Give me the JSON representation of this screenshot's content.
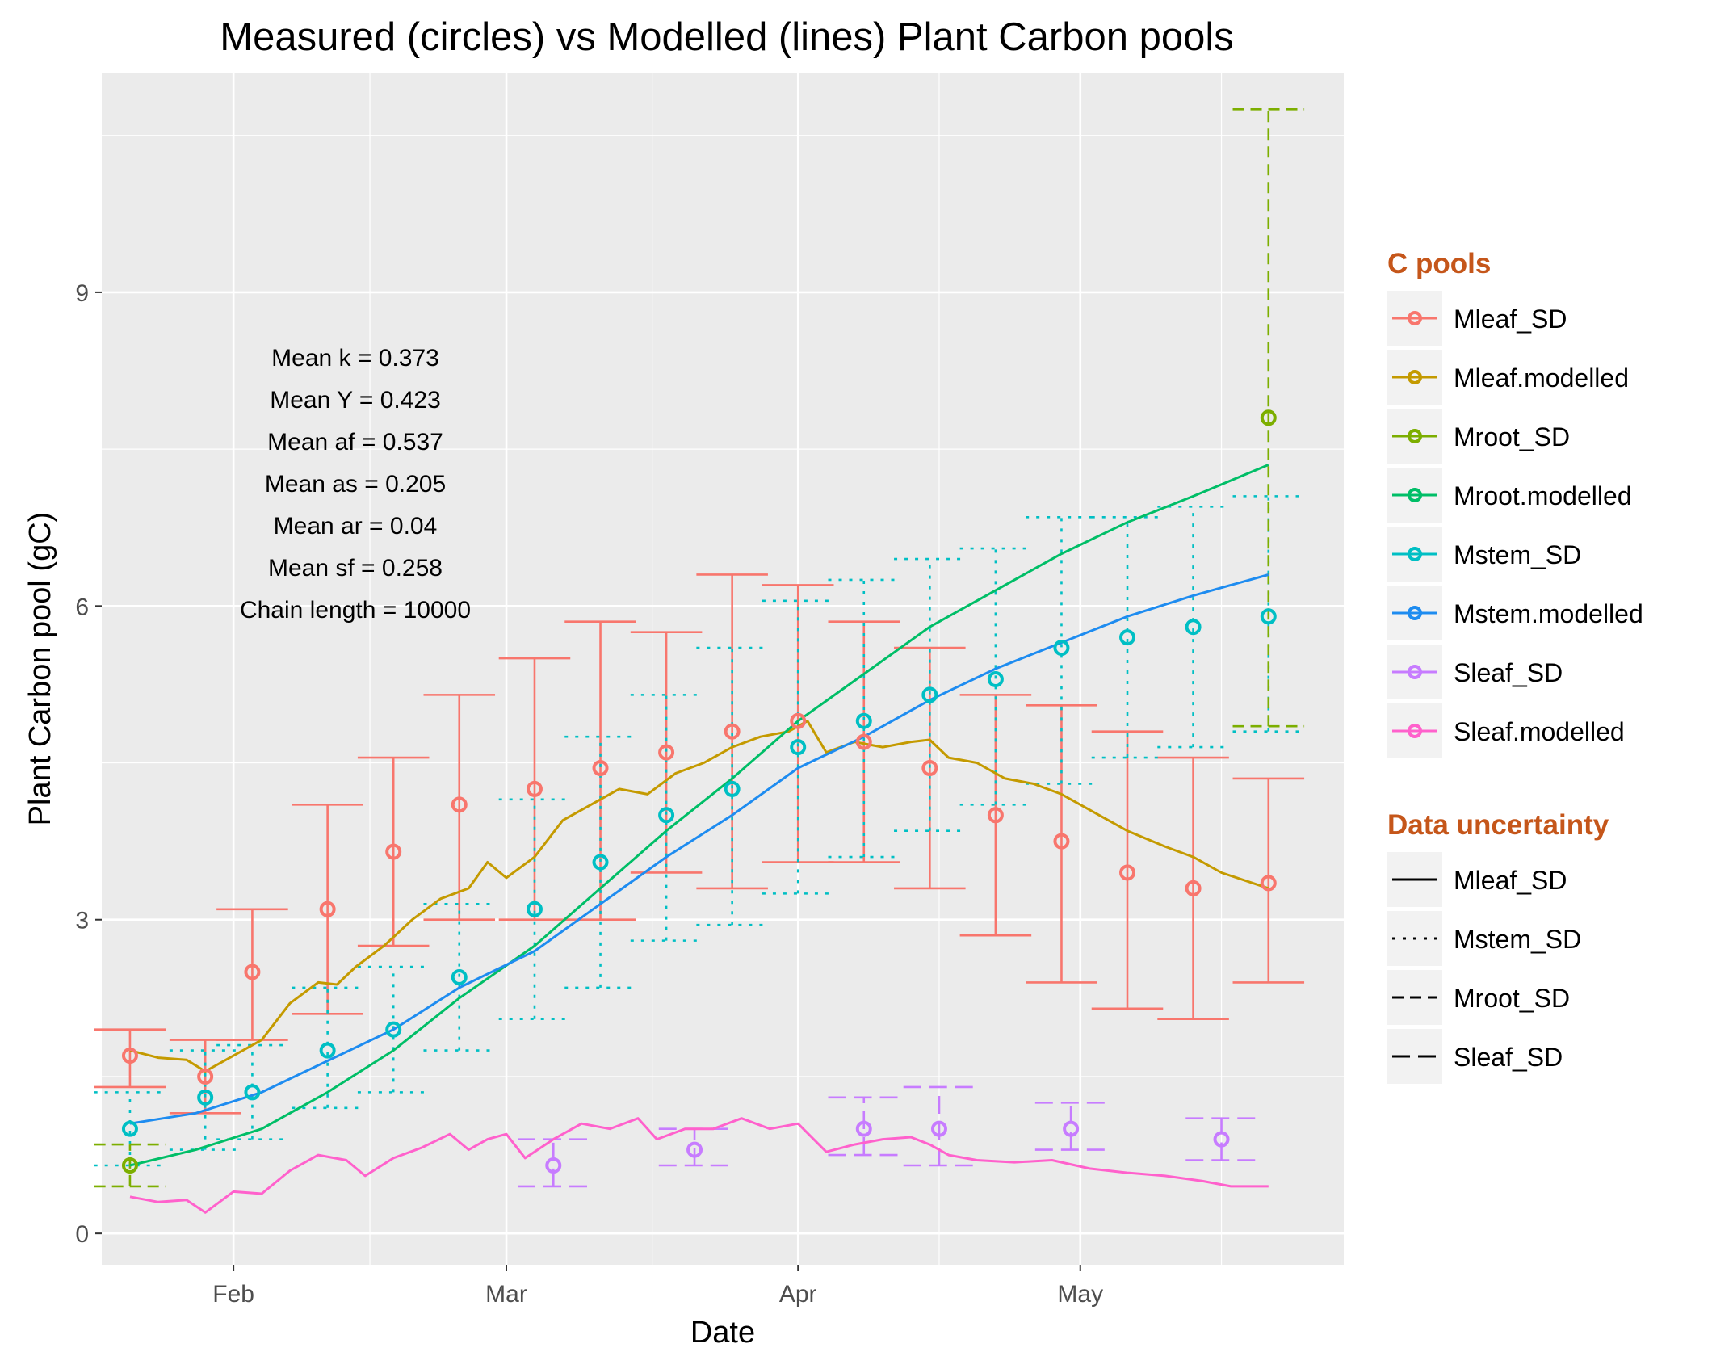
{
  "chart_data": {
    "type": "line",
    "title": "Measured (circles) vs Modelled (lines) Plant Carbon pools",
    "xlabel": "Date",
    "ylabel": "Plant Carbon pool (gC)",
    "x_axis": {
      "range": [
        "2000-01-18",
        "2000-05-29"
      ],
      "ticks": [
        {
          "date": "2000-02-01",
          "label": "Feb"
        },
        {
          "date": "2000-03-01",
          "label": "Mar"
        },
        {
          "date": "2000-04-01",
          "label": "Apr"
        },
        {
          "date": "2000-05-01",
          "label": "May"
        }
      ]
    },
    "y_axis": {
      "range": [
        -0.3,
        11.1
      ],
      "ticks": [
        0,
        3,
        6,
        9
      ]
    },
    "grid": true,
    "background": "#ebebeb",
    "annotations": [
      "Mean k =  0.373",
      "Mean Y =  0.423",
      "Mean af =  0.537",
      "Mean as =  0.205",
      "Mean ar =  0.04",
      "Mean sf =  0.258",
      "Chain length =  10000"
    ],
    "legend_pools": {
      "title": "C pools",
      "title_color": "#c5561a",
      "placement": "right",
      "entries": [
        {
          "label": "Mleaf_SD",
          "color": "#f8766d"
        },
        {
          "label": "Mleaf.modelled",
          "color": "#c49a00"
        },
        {
          "label": "Mroot_SD",
          "color": "#7cae00"
        },
        {
          "label": "Mroot.modelled",
          "color": "#00be67"
        },
        {
          "label": "Mstem_SD",
          "color": "#00bfc4"
        },
        {
          "label": "Mstem.modelled",
          "color": "#1e8cf0"
        },
        {
          "label": "Sleaf_SD",
          "color": "#c77cff"
        },
        {
          "label": "Sleaf.modelled",
          "color": "#ff61cc"
        }
      ]
    },
    "legend_uncertainty": {
      "title": "Data uncertainty",
      "title_color": "#c5561a",
      "placement": "right",
      "entries": [
        {
          "label": "Mleaf_SD",
          "dash": "solid"
        },
        {
          "label": "Mstem_SD",
          "dash": "dotted"
        },
        {
          "label": "Mroot_SD",
          "dash": "dashed"
        },
        {
          "label": "Sleaf_SD",
          "dash": "longdash"
        }
      ]
    },
    "measured": [
      {
        "name": "Mleaf_SD",
        "color": "#f8766d",
        "dash": "solid",
        "cap_half_days": 3.8,
        "points": [
          {
            "x": "2000-01-21",
            "y": 1.7,
            "lo": 1.4,
            "hi": 1.95
          },
          {
            "x": "2000-01-29",
            "y": 1.5,
            "lo": 1.15,
            "hi": 1.85
          },
          {
            "x": "2000-02-03",
            "y": 2.5,
            "lo": 1.85,
            "hi": 3.1
          },
          {
            "x": "2000-02-11",
            "y": 3.1,
            "lo": 2.1,
            "hi": 4.1
          },
          {
            "x": "2000-02-18",
            "y": 3.65,
            "lo": 2.75,
            "hi": 4.55
          },
          {
            "x": "2000-02-25",
            "y": 4.1,
            "lo": 3.0,
            "hi": 5.15
          },
          {
            "x": "2000-03-04",
            "y": 4.25,
            "lo": 3.0,
            "hi": 5.5
          },
          {
            "x": "2000-03-11",
            "y": 4.45,
            "lo": 3.0,
            "hi": 5.85
          },
          {
            "x": "2000-03-18",
            "y": 4.6,
            "lo": 3.45,
            "hi": 5.75
          },
          {
            "x": "2000-03-25",
            "y": 4.8,
            "lo": 3.3,
            "hi": 6.3
          },
          {
            "x": "2000-04-01",
            "y": 4.9,
            "lo": 3.55,
            "hi": 6.2
          },
          {
            "x": "2000-04-08",
            "y": 4.7,
            "lo": 3.55,
            "hi": 5.85
          },
          {
            "x": "2000-04-15",
            "y": 4.45,
            "lo": 3.3,
            "hi": 5.6
          },
          {
            "x": "2000-04-22",
            "y": 4.0,
            "lo": 2.85,
            "hi": 5.15
          },
          {
            "x": "2000-04-29",
            "y": 3.75,
            "lo": 2.4,
            "hi": 5.05
          },
          {
            "x": "2000-05-06",
            "y": 3.45,
            "lo": 2.15,
            "hi": 4.8
          },
          {
            "x": "2000-05-13",
            "y": 3.3,
            "lo": 2.05,
            "hi": 4.55
          },
          {
            "x": "2000-05-21",
            "y": 3.35,
            "lo": 2.4,
            "hi": 4.35
          }
        ]
      },
      {
        "name": "Mstem_SD",
        "color": "#00bfc4",
        "dash": "dotted",
        "cap_half_days": 3.8,
        "points": [
          {
            "x": "2000-01-21",
            "y": 1.0,
            "lo": 0.65,
            "hi": 1.35
          },
          {
            "x": "2000-01-29",
            "y": 1.3,
            "lo": 0.8,
            "hi": 1.75
          },
          {
            "x": "2000-02-03",
            "y": 1.35,
            "lo": 0.9,
            "hi": 1.8
          },
          {
            "x": "2000-02-11",
            "y": 1.75,
            "lo": 1.2,
            "hi": 2.35
          },
          {
            "x": "2000-02-18",
            "y": 1.95,
            "lo": 1.35,
            "hi": 2.55
          },
          {
            "x": "2000-02-25",
            "y": 2.45,
            "lo": 1.75,
            "hi": 3.15
          },
          {
            "x": "2000-03-04",
            "y": 3.1,
            "lo": 2.05,
            "hi": 4.15
          },
          {
            "x": "2000-03-11",
            "y": 3.55,
            "lo": 2.35,
            "hi": 4.75
          },
          {
            "x": "2000-03-18",
            "y": 4.0,
            "lo": 2.8,
            "hi": 5.15
          },
          {
            "x": "2000-03-25",
            "y": 4.25,
            "lo": 2.95,
            "hi": 5.6
          },
          {
            "x": "2000-04-01",
            "y": 4.65,
            "lo": 3.25,
            "hi": 6.05
          },
          {
            "x": "2000-04-08",
            "y": 4.9,
            "lo": 3.6,
            "hi": 6.25
          },
          {
            "x": "2000-04-15",
            "y": 5.15,
            "lo": 3.85,
            "hi": 6.45
          },
          {
            "x": "2000-04-22",
            "y": 5.3,
            "lo": 4.1,
            "hi": 6.55
          },
          {
            "x": "2000-04-29",
            "y": 5.6,
            "lo": 4.3,
            "hi": 6.85
          },
          {
            "x": "2000-05-06",
            "y": 5.7,
            "lo": 4.55,
            "hi": 6.85
          },
          {
            "x": "2000-05-13",
            "y": 5.8,
            "lo": 4.65,
            "hi": 6.95
          },
          {
            "x": "2000-05-21",
            "y": 5.9,
            "lo": 4.8,
            "hi": 7.05
          }
        ]
      },
      {
        "name": "Mroot_SD",
        "color": "#7cae00",
        "dash": "dashed",
        "cap_half_days": 3.8,
        "points": [
          {
            "x": "2000-01-21",
            "y": 0.65,
            "lo": 0.45,
            "hi": 0.85
          },
          {
            "x": "2000-05-21",
            "y": 7.8,
            "lo": 4.85,
            "hi": 10.75
          }
        ]
      },
      {
        "name": "Sleaf_SD",
        "color": "#c77cff",
        "dash": "longdash",
        "cap_half_days": 3.8,
        "points": [
          {
            "x": "2000-03-06",
            "y": 0.65,
            "lo": 0.45,
            "hi": 0.9
          },
          {
            "x": "2000-03-21",
            "y": 0.8,
            "lo": 0.65,
            "hi": 1.0
          },
          {
            "x": "2000-04-08",
            "y": 1.0,
            "lo": 0.75,
            "hi": 1.3
          },
          {
            "x": "2000-04-16",
            "y": 1.0,
            "lo": 0.65,
            "hi": 1.4
          },
          {
            "x": "2000-04-30",
            "y": 1.0,
            "lo": 0.8,
            "hi": 1.25
          },
          {
            "x": "2000-05-16",
            "y": 0.9,
            "lo": 0.7,
            "hi": 1.1
          }
        ]
      }
    ],
    "modelled": [
      {
        "name": "Mleaf.modelled",
        "color": "#c49a00",
        "points": [
          [
            "2000-01-21",
            1.75
          ],
          [
            "2000-01-24",
            1.68
          ],
          [
            "2000-01-27",
            1.66
          ],
          [
            "2000-01-29",
            1.55
          ],
          [
            "2000-02-01",
            1.7
          ],
          [
            "2000-02-04",
            1.85
          ],
          [
            "2000-02-07",
            2.2
          ],
          [
            "2000-02-10",
            2.4
          ],
          [
            "2000-02-12",
            2.38
          ],
          [
            "2000-02-14",
            2.55
          ],
          [
            "2000-02-17",
            2.75
          ],
          [
            "2000-02-20",
            3.0
          ],
          [
            "2000-02-23",
            3.2
          ],
          [
            "2000-02-26",
            3.3
          ],
          [
            "2000-02-28",
            3.55
          ],
          [
            "2000-03-01",
            3.4
          ],
          [
            "2000-03-04",
            3.6
          ],
          [
            "2000-03-07",
            3.95
          ],
          [
            "2000-03-10",
            4.1
          ],
          [
            "2000-03-13",
            4.25
          ],
          [
            "2000-03-16",
            4.2
          ],
          [
            "2000-03-19",
            4.4
          ],
          [
            "2000-03-22",
            4.5
          ],
          [
            "2000-03-25",
            4.65
          ],
          [
            "2000-03-28",
            4.75
          ],
          [
            "2000-03-31",
            4.8
          ],
          [
            "2000-04-02",
            4.9
          ],
          [
            "2000-04-04",
            4.6
          ],
          [
            "2000-04-07",
            4.7
          ],
          [
            "2000-04-10",
            4.65
          ],
          [
            "2000-04-13",
            4.7
          ],
          [
            "2000-04-15",
            4.72
          ],
          [
            "2000-04-17",
            4.55
          ],
          [
            "2000-04-20",
            4.5
          ],
          [
            "2000-04-23",
            4.35
          ],
          [
            "2000-04-26",
            4.3
          ],
          [
            "2000-04-29",
            4.2
          ],
          [
            "2000-05-02",
            4.05
          ],
          [
            "2000-05-06",
            3.85
          ],
          [
            "2000-05-10",
            3.7
          ],
          [
            "2000-05-13",
            3.6
          ],
          [
            "2000-05-16",
            3.45
          ],
          [
            "2000-05-21",
            3.3
          ]
        ]
      },
      {
        "name": "Mroot.modelled",
        "color": "#00be67",
        "points": [
          [
            "2000-01-21",
            0.65
          ],
          [
            "2000-01-28",
            0.8
          ],
          [
            "2000-02-04",
            1.0
          ],
          [
            "2000-02-11",
            1.35
          ],
          [
            "2000-02-18",
            1.75
          ],
          [
            "2000-02-25",
            2.25
          ],
          [
            "2000-03-04",
            2.75
          ],
          [
            "2000-03-11",
            3.3
          ],
          [
            "2000-03-18",
            3.85
          ],
          [
            "2000-03-25",
            4.35
          ],
          [
            "2000-04-01",
            4.9
          ],
          [
            "2000-04-08",
            5.35
          ],
          [
            "2000-04-15",
            5.8
          ],
          [
            "2000-04-22",
            6.15
          ],
          [
            "2000-04-29",
            6.5
          ],
          [
            "2000-05-06",
            6.8
          ],
          [
            "2000-05-13",
            7.05
          ],
          [
            "2000-05-21",
            7.35
          ]
        ]
      },
      {
        "name": "Mstem.modelled",
        "color": "#1e8cf0",
        "points": [
          [
            "2000-01-21",
            1.05
          ],
          [
            "2000-01-28",
            1.15
          ],
          [
            "2000-02-04",
            1.35
          ],
          [
            "2000-02-11",
            1.65
          ],
          [
            "2000-02-18",
            1.95
          ],
          [
            "2000-02-25",
            2.35
          ],
          [
            "2000-03-04",
            2.7
          ],
          [
            "2000-03-11",
            3.15
          ],
          [
            "2000-03-18",
            3.6
          ],
          [
            "2000-03-25",
            4.0
          ],
          [
            "2000-04-01",
            4.45
          ],
          [
            "2000-04-08",
            4.75
          ],
          [
            "2000-04-15",
            5.1
          ],
          [
            "2000-04-22",
            5.4
          ],
          [
            "2000-04-29",
            5.65
          ],
          [
            "2000-05-06",
            5.9
          ],
          [
            "2000-05-13",
            6.1
          ],
          [
            "2000-05-21",
            6.3
          ]
        ]
      },
      {
        "name": "Sleaf.modelled",
        "color": "#ff61cc",
        "points": [
          [
            "2000-01-21",
            0.35
          ],
          [
            "2000-01-24",
            0.3
          ],
          [
            "2000-01-27",
            0.32
          ],
          [
            "2000-01-29",
            0.2
          ],
          [
            "2000-02-01",
            0.4
          ],
          [
            "2000-02-04",
            0.38
          ],
          [
            "2000-02-07",
            0.6
          ],
          [
            "2000-02-10",
            0.75
          ],
          [
            "2000-02-13",
            0.7
          ],
          [
            "2000-02-15",
            0.55
          ],
          [
            "2000-02-18",
            0.72
          ],
          [
            "2000-02-21",
            0.82
          ],
          [
            "2000-02-24",
            0.95
          ],
          [
            "2000-02-26",
            0.8
          ],
          [
            "2000-02-28",
            0.9
          ],
          [
            "2000-03-01",
            0.95
          ],
          [
            "2000-03-03",
            0.72
          ],
          [
            "2000-03-06",
            0.9
          ],
          [
            "2000-03-09",
            1.05
          ],
          [
            "2000-03-12",
            1.0
          ],
          [
            "2000-03-15",
            1.1
          ],
          [
            "2000-03-17",
            0.9
          ],
          [
            "2000-03-20",
            1.0
          ],
          [
            "2000-03-23",
            1.0
          ],
          [
            "2000-03-26",
            1.1
          ],
          [
            "2000-03-29",
            1.0
          ],
          [
            "2000-04-01",
            1.05
          ],
          [
            "2000-04-04",
            0.78
          ],
          [
            "2000-04-07",
            0.85
          ],
          [
            "2000-04-10",
            0.9
          ],
          [
            "2000-04-13",
            0.92
          ],
          [
            "2000-04-15",
            0.85
          ],
          [
            "2000-04-17",
            0.75
          ],
          [
            "2000-04-20",
            0.7
          ],
          [
            "2000-04-24",
            0.68
          ],
          [
            "2000-04-28",
            0.7
          ],
          [
            "2000-05-02",
            0.62
          ],
          [
            "2000-05-06",
            0.58
          ],
          [
            "2000-05-10",
            0.55
          ],
          [
            "2000-05-14",
            0.5
          ],
          [
            "2000-05-17",
            0.45
          ],
          [
            "2000-05-21",
            0.45
          ]
        ]
      }
    ]
  }
}
